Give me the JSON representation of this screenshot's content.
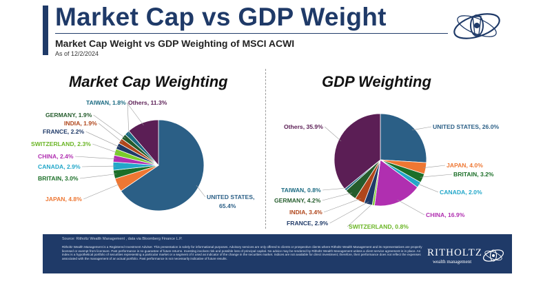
{
  "header": {
    "title": "Market Cap vs GDP Weight",
    "subtitle": "Market Cap Weight vs GDP Weighting of MSCI ACWI",
    "as_of": "As of 12/2/2024"
  },
  "colors": {
    "navy": "#1f3a68",
    "united_states": "#2b5f86",
    "japan": "#ee7733",
    "britain": "#1b6f28",
    "canada": "#22a7c9",
    "china": "#b02fb0",
    "switzerland": "#7acc2c",
    "france": "#1f3a68",
    "india": "#b0461b",
    "germany": "#245c2c",
    "taiwan": "#1a6a82",
    "others": "#5b1e55"
  },
  "chart_data": [
    {
      "type": "pie",
      "title": "Market Cap Weighting",
      "slices": [
        {
          "label": "UNITED STATES, 65.4%",
          "name": "United States",
          "value": 65.4,
          "color_key": "united_states"
        },
        {
          "label": "JAPAN, 4.8%",
          "name": "Japan",
          "value": 4.8,
          "color_key": "japan"
        },
        {
          "label": "BRITAIN, 3.0%",
          "name": "Britain",
          "value": 3.0,
          "color_key": "britain"
        },
        {
          "label": "CANADA, 2.9%",
          "name": "Canada",
          "value": 2.9,
          "color_key": "canada"
        },
        {
          "label": "CHINA, 2.4%",
          "name": "China",
          "value": 2.4,
          "color_key": "china"
        },
        {
          "label": "SWITZERLAND, 2.3%",
          "name": "Switzerland",
          "value": 2.3,
          "color_key": "switzerland"
        },
        {
          "label": "FRANCE, 2.2%",
          "name": "France",
          "value": 2.2,
          "color_key": "france"
        },
        {
          "label": "INDIA, 1.9%",
          "name": "India",
          "value": 1.9,
          "color_key": "india"
        },
        {
          "label": "GERMANY, 1.9%",
          "name": "Germany",
          "value": 1.9,
          "color_key": "germany"
        },
        {
          "label": "TAIWAN, 1.8%",
          "name": "Taiwan",
          "value": 1.8,
          "color_key": "taiwan"
        },
        {
          "label": "Others, 11.3%",
          "name": "Others",
          "value": 11.3,
          "color_key": "others"
        }
      ]
    },
    {
      "type": "pie",
      "title": "GDP Weighting",
      "slices": [
        {
          "label": "UNITED STATES, 26.0%",
          "name": "United States",
          "value": 26.0,
          "color_key": "united_states"
        },
        {
          "label": "JAPAN, 4.0%",
          "name": "Japan",
          "value": 4.0,
          "color_key": "japan"
        },
        {
          "label": "BRITAIN, 3.2%",
          "name": "Britain",
          "value": 3.2,
          "color_key": "britain"
        },
        {
          "label": "CANADA, 2.0%",
          "name": "Canada",
          "value": 2.0,
          "color_key": "canada"
        },
        {
          "label": "CHINA, 16.9%",
          "name": "China",
          "value": 16.9,
          "color_key": "china"
        },
        {
          "label": "SWITZERLAND, 0.8%",
          "name": "Switzerland",
          "value": 0.8,
          "color_key": "switzerland"
        },
        {
          "label": "FRANCE, 2.9%",
          "name": "France",
          "value": 2.9,
          "color_key": "france"
        },
        {
          "label": "INDIA, 3.4%",
          "name": "India",
          "value": 3.4,
          "color_key": "india"
        },
        {
          "label": "GERMANY, 4.2%",
          "name": "Germany",
          "value": 4.2,
          "color_key": "germany"
        },
        {
          "label": "TAIWAN, 0.8%",
          "name": "Taiwan",
          "value": 0.8,
          "color_key": "taiwan"
        },
        {
          "label": "Others, 35.9%",
          "name": "Others",
          "value": 35.9,
          "color_key": "others"
        }
      ]
    }
  ],
  "footer": {
    "source": "Source: Ritholtz Wealth Management , data via Bloomberg Finance L.P.",
    "disclaimer": "Ritholtz Wealth Management is a Registered Investment Adviser. This presentation is solely for informational purposes. Advisory services are only offered to clients or prospective clients where Ritholtz Wealth Management and its representatives are properly licensed or exempt from licensure. Past performance is no guarantee of future returns. Investing involves risk and possible loss of principal capital. No advice may be rendered by Ritholtz Wealth Management unless a client service agreement is in place. An index is a hypothetical portfolio of securities representing a particular market or a segment of it used as indicator of the change in the securities market. Indices are not available for direct investment; therefore, their performance does not reflect the expenses associated with the management of an actual portfolio. Past performance is not necessarily indicative of future results.",
    "logo_name": "RITHOLTZ",
    "logo_sub": "wealth management"
  }
}
